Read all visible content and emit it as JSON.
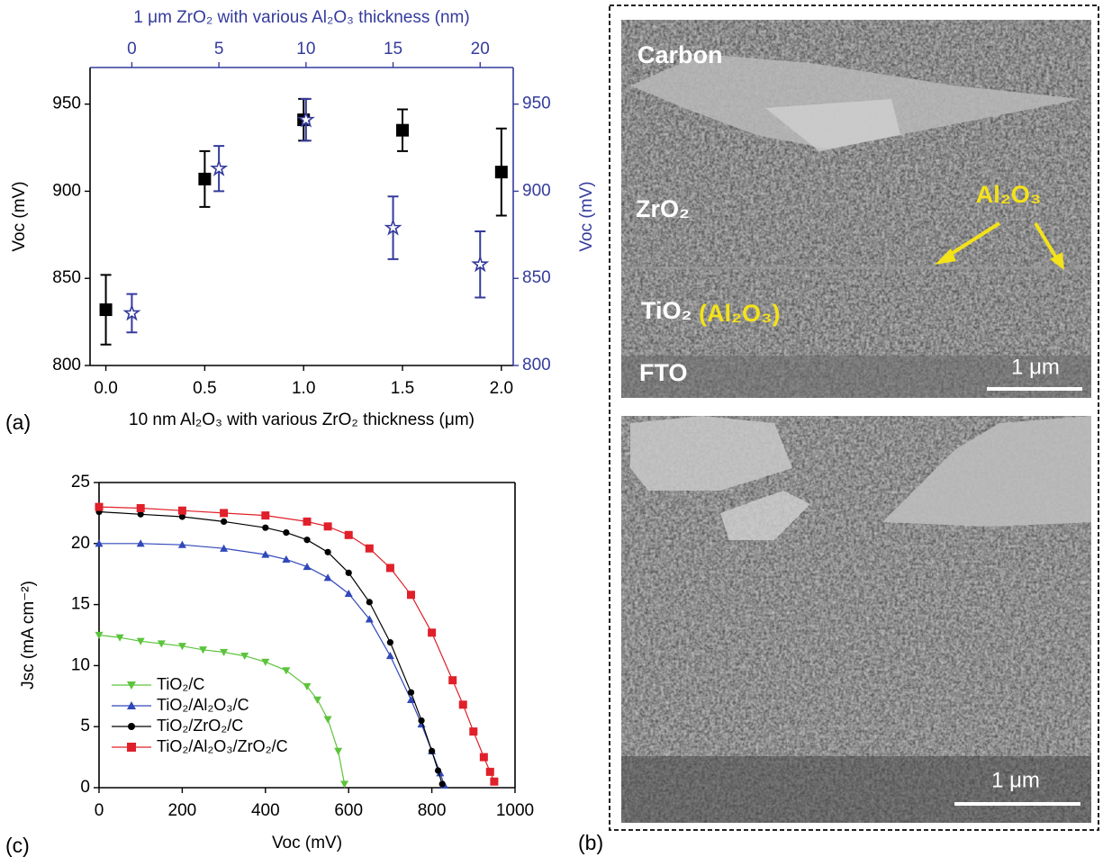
{
  "chart_data": [
    {
      "type": "scatter",
      "panel_label": "(a)",
      "x_label": "10 nm Al₂O₃ with various ZrO₂ thickness (μm)",
      "x2_label": "1 μm ZrO₂ with various Al₂O₃ thickness (nm)",
      "y_label": "Voc (mV)",
      "y2_label": "Voc (mV)",
      "xlim": [
        -0.08,
        2.06
      ],
      "xticks": [
        {
          "value": 0,
          "label": "0.0"
        },
        0.5,
        {
          "value": 1,
          "label": "1.0"
        },
        1.5,
        {
          "value": 2,
          "label": "2.0"
        }
      ],
      "x2lim": [
        -2.4,
        21.9
      ],
      "x2ticks": [
        0,
        5,
        10,
        15,
        20
      ],
      "ylim": [
        800,
        971
      ],
      "yticks": [
        800,
        850,
        900,
        950
      ],
      "y2lim": [
        800,
        971
      ],
      "y2ticks": [
        800,
        850,
        900,
        950
      ],
      "secondary_color": "#343b9c",
      "series": [
        {
          "color": "#000000",
          "marker": "square",
          "x": [
            0,
            0.5,
            1,
            1.5,
            2
          ],
          "values": [
            832,
            907,
            941,
            935,
            911
          ],
          "errors": [
            20,
            16,
            12,
            12,
            25
          ]
        },
        {
          "color": "#343b9c",
          "marker": "star",
          "axis": "y2",
          "x_axis": "x2",
          "x": [
            0,
            5,
            10,
            15,
            20
          ],
          "values": [
            830,
            913,
            941,
            879,
            858
          ],
          "errors": [
            11,
            13,
            12,
            18,
            19
          ]
        }
      ]
    },
    {
      "type": "line",
      "panel_label": "(c)",
      "x_label": "Voc (mV)",
      "y_label": "Jsc (mA cm⁻²)",
      "xlim": [
        0,
        1000
      ],
      "xticks": [
        0,
        200,
        400,
        600,
        800,
        1000
      ],
      "ylim": [
        0,
        25
      ],
      "yticks": [
        0,
        5,
        10,
        15,
        20,
        25
      ],
      "legend": "lower left",
      "series": [
        {
          "name": "TiO₂/C",
          "color": "#5cc43c",
          "marker": "triangle-down",
          "x": [
            0,
            50,
            100,
            150,
            200,
            250,
            300,
            350,
            400,
            450,
            500,
            525,
            550,
            575,
            590
          ],
          "values": [
            12.5,
            12.3,
            12.0,
            11.8,
            11.6,
            11.3,
            11.1,
            10.8,
            10.3,
            9.6,
            8.3,
            7.2,
            5.6,
            3.0,
            0.3
          ]
        },
        {
          "name": "TiO₂/Al₂O₃/C",
          "color": "#3148b8",
          "marker": "triangle-up",
          "x": [
            0,
            100,
            200,
            300,
            400,
            450,
            500,
            550,
            600,
            650,
            700,
            750,
            775,
            800,
            820,
            830
          ],
          "values": [
            20.0,
            20.0,
            19.9,
            19.6,
            19.1,
            18.7,
            18.1,
            17.2,
            15.9,
            13.8,
            10.8,
            7.2,
            5.2,
            3.0,
            1.2,
            0.2
          ]
        },
        {
          "name": "TiO₂/ZrO₂/C",
          "color": "#000000",
          "marker": "circle",
          "x": [
            0,
            100,
            200,
            300,
            400,
            450,
            500,
            550,
            600,
            650,
            700,
            750,
            775,
            800,
            815,
            825
          ],
          "values": [
            22.6,
            22.4,
            22.2,
            21.8,
            21.3,
            20.9,
            20.3,
            19.3,
            17.6,
            15.2,
            11.9,
            7.8,
            5.5,
            3.0,
            1.4,
            0.3
          ]
        },
        {
          "name": "TiO₂/Al₂O₃/ZrO₂/C",
          "color": "#e0202a",
          "marker": "square",
          "x": [
            0,
            100,
            200,
            300,
            400,
            500,
            550,
            600,
            650,
            700,
            750,
            800,
            850,
            875,
            900,
            925,
            940,
            950
          ],
          "values": [
            23.0,
            22.9,
            22.7,
            22.5,
            22.3,
            21.8,
            21.4,
            20.7,
            19.6,
            18.0,
            15.8,
            12.7,
            8.8,
            6.8,
            4.6,
            2.5,
            1.3,
            0.5
          ]
        }
      ]
    }
  ],
  "micrograph": {
    "panel_label": "(b)",
    "carbon": "Carbon",
    "zro2": "ZrO₂",
    "al2o3": "Al₂O₃",
    "tio2": "TiO₂",
    "tio2_fill": "(Al₂O₃)",
    "fto": "FTO",
    "scale_top": "1 μm",
    "scale_bottom": "1 μm"
  }
}
